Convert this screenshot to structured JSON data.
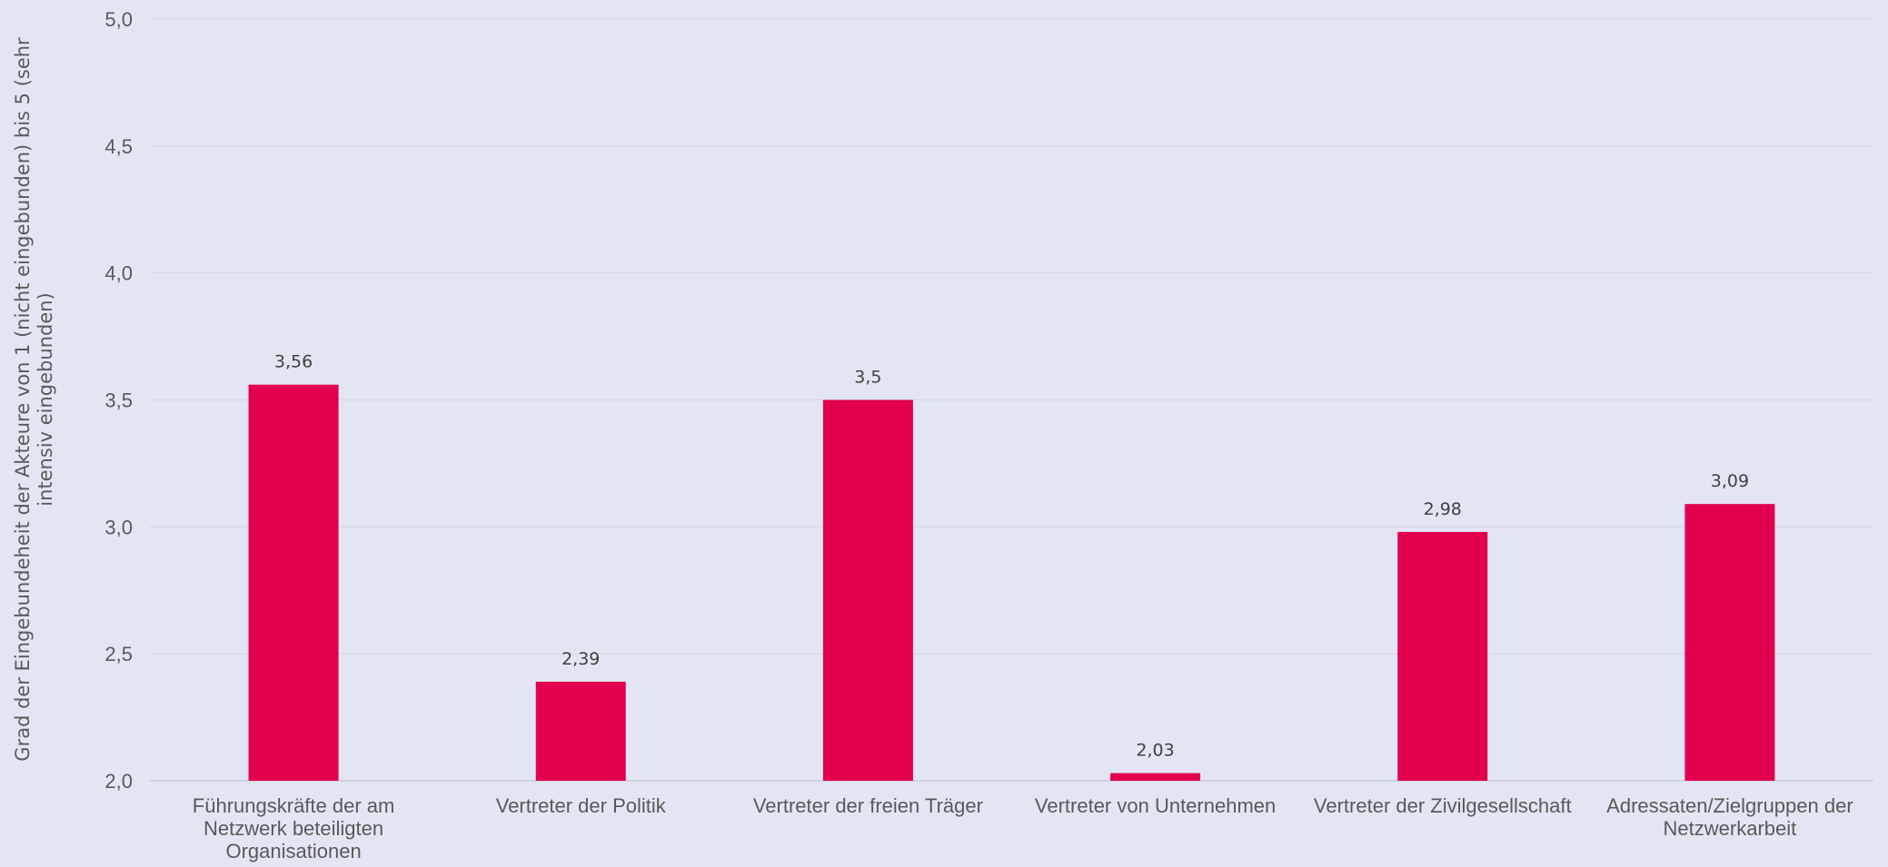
{
  "chart_data": {
    "type": "bar",
    "categories": [
      [
        "Führungskräfte der am",
        "Netzwerk beteiligten",
        "Organisationen"
      ],
      [
        "Vertreter der Politik"
      ],
      [
        "Vertreter der freien Träger"
      ],
      [
        "Vertreter von Unternehmen"
      ],
      [
        "Vertreter der Zivilgesellschaft"
      ],
      [
        "Adressaten/Zielgruppen der",
        "Netzwerkarbeit"
      ]
    ],
    "values": [
      3.56,
      2.39,
      3.5,
      2.03,
      2.98,
      3.09
    ],
    "value_labels": [
      "3,56",
      "2,39",
      "3,5",
      "2,03",
      "2,98",
      "3,09"
    ],
    "ylabel": [
      "Grad der Eingebundeheit der Akteure von 1 (nicht eingebunden) bis 5 (sehr",
      "intensiv eingebunden)"
    ],
    "ylim": [
      2.0,
      5.0
    ],
    "yticks": [
      2.0,
      2.5,
      3.0,
      3.5,
      4.0,
      4.5,
      5.0
    ],
    "ytick_labels": [
      "2,0",
      "2,5",
      "3,0",
      "3,5",
      "4,0",
      "4,5",
      "5,0"
    ],
    "grid": true,
    "legend": "none",
    "colors": {
      "bar": "#e2004f",
      "background": "#e3e6f2"
    }
  }
}
